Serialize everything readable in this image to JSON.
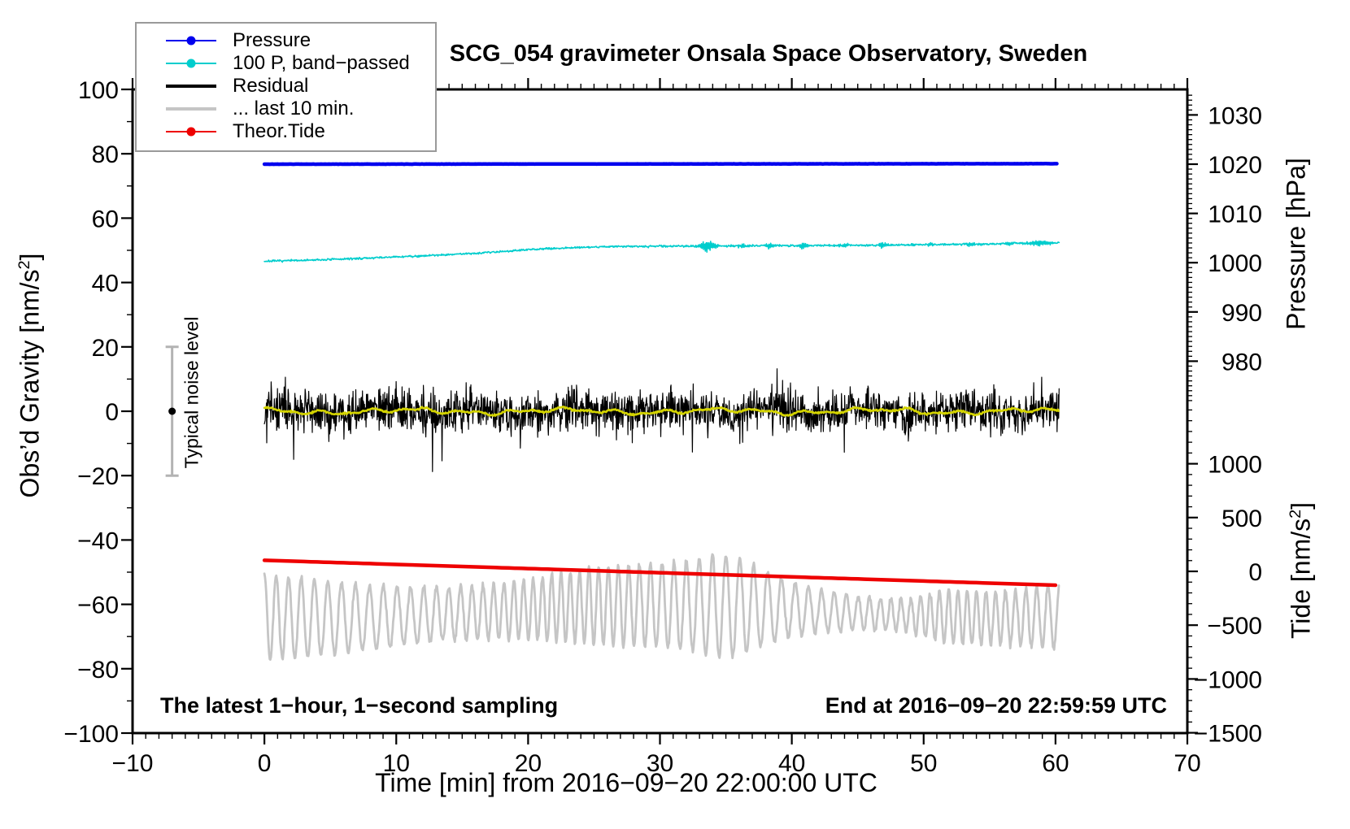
{
  "title": "SCG_054 gravimeter Onsala Space Observatory, Sweden",
  "legend": {
    "items": [
      {
        "label": "Pressure",
        "color": "#0000ee",
        "dot": true,
        "thickness": 2
      },
      {
        "label": "100 P, band−passed",
        "color": "#00cdcd",
        "dot": true,
        "thickness": 2
      },
      {
        "label": "Residual",
        "color": "#000000",
        "dot": false,
        "thickness": 4
      },
      {
        "label": "... last 10 min.",
        "color": "#c5c5c5",
        "dot": false,
        "thickness": 4
      },
      {
        "label": "Theor.Tide",
        "color": "#ee0000",
        "dot": true,
        "thickness": 2
      }
    ]
  },
  "chart_data": {
    "type": "line",
    "title": "SCG_054 gravimeter Onsala Space Observatory, Sweden",
    "xlabel": "Time [min] from 2016−09−20 22:00:00 UTC",
    "annotations": {
      "left": "The latest 1−hour, 1−second sampling",
      "right": "End at 2016−09−20 22:59:59 UTC"
    },
    "noise_marker": {
      "t": -7,
      "value": 0,
      "error": 20,
      "label": "Typical noise level",
      "color": "#b3b3b3",
      "dot_color": "#000000"
    },
    "axes": {
      "x": {
        "label": "Time [min] from 2016−09−20 22:00:00 UTC",
        "range": [
          -10,
          70
        ],
        "minor_step": 1,
        "major": [
          {
            "t": -10,
            "label": "−10"
          },
          {
            "t": 0,
            "label": "0"
          },
          {
            "t": 10,
            "label": "10"
          },
          {
            "t": 20,
            "label": "20"
          },
          {
            "t": 30,
            "label": "30"
          },
          {
            "t": 40,
            "label": "40"
          },
          {
            "t": 50,
            "label": "50"
          },
          {
            "t": 60,
            "label": "60"
          },
          {
            "t": 70,
            "label": "70"
          }
        ]
      },
      "gravity": {
        "label_pre": "Obs’d Gravity [nm/s",
        "label_sup": "2",
        "label_post": "]",
        "range": [
          -100,
          100
        ],
        "minor_step": 10,
        "major": [
          {
            "v": 100,
            "label": "100"
          },
          {
            "v": 80,
            "label": "80"
          },
          {
            "v": 60,
            "label": "60"
          },
          {
            "v": 40,
            "label": "40"
          },
          {
            "v": 20,
            "label": "20"
          },
          {
            "v": 0,
            "label": "0"
          },
          {
            "v": -20,
            "label": "−20"
          },
          {
            "v": -40,
            "label": "−40"
          },
          {
            "v": -60,
            "label": "−60"
          },
          {
            "v": -80,
            "label": "−80"
          },
          {
            "v": -100,
            "label": "−100"
          }
        ]
      },
      "pressure": {
        "label": "Pressure [hPa]",
        "units": "hPa",
        "minor_step": 1,
        "minor_range": [
          972,
          1034
        ],
        "major": [
          {
            "v": 1030,
            "label": "1030"
          },
          {
            "v": 1020,
            "label": "1020"
          },
          {
            "v": 1010,
            "label": "1010"
          },
          {
            "v": 1000,
            "label": "1000"
          },
          {
            "v": 990,
            "label": "990"
          },
          {
            "v": 980,
            "label": "980"
          }
        ]
      },
      "tide": {
        "label_pre": "Tide [nm/s",
        "label_sup": "2",
        "label_post": "]",
        "minor_step": 100,
        "minor_range": [
          -1500,
          1500
        ],
        "major": [
          {
            "v": 1000,
            "label": "1000"
          },
          {
            "v": 500,
            "label": "500"
          },
          {
            "v": 0,
            "label": "0"
          },
          {
            "v": -500,
            "label": "−500"
          },
          {
            "v": -1000,
            "label": "−1000"
          },
          {
            "v": -1500,
            "label": "−1500"
          }
        ]
      }
    },
    "series": [
      {
        "name": "... last 10 min.",
        "axis": "gravity",
        "color": "#c5c5c5",
        "width": 2.8,
        "kind": "carrier",
        "seed": 9,
        "span": [
          0,
          60.3
        ],
        "dt": 0.045,
        "center": -63,
        "center_waves": [
          [
            -1.7,
            0.125,
            1.0
          ],
          [
            1.0,
            0.04,
            0.3
          ]
        ],
        "period": 0.88,
        "period_wobble": [
          0.18,
          0.21,
          0
        ],
        "amp": 9.5,
        "amp_waves": [
          [
            3.0,
            0.19,
            2.0
          ],
          [
            1.8,
            0.077,
            0.6
          ]
        ],
        "amp_bumps": [
          [
            35.3,
            2.2,
            4.5
          ],
          [
            52.0,
            2.0,
            2.5
          ]
        ],
        "noise": 0.7
      },
      {
        "name": "Theor.Tide",
        "axis": "tide",
        "color": "#ee0000",
        "width": 4.5,
        "kind": "trend",
        "seed": 1,
        "span": [
          0,
          60.4
        ],
        "dt": 0.5,
        "anchors": [
          [
            0,
            103
          ],
          [
            60.4,
            -130
          ]
        ],
        "noise": 0
      },
      {
        "name": "Residual",
        "axis": "gravity",
        "color": "#000000",
        "width": 1.2,
        "kind": "spiky",
        "seed": 3,
        "span": [
          0,
          60.3
        ],
        "dt": 0.03,
        "base": 0,
        "sigma": 4.8,
        "spike_prob": 0.02,
        "spike_scale": 2.4,
        "clamp": 26,
        "slow_amp": 1.0,
        "slow_period": 7.3
      },
      {
        "name": "Residual smoothed",
        "axis": "gravity",
        "color": "#d4d400",
        "width": 2.6,
        "kind": "smooth",
        "seed": 5,
        "span": [
          0,
          60.3
        ],
        "dt": 0.06,
        "base": 0,
        "waves": [
          [
            0.45,
            1.7,
            0.5
          ],
          [
            0.55,
            0.53,
            2.1
          ],
          [
            0.35,
            3.1,
            1.0
          ]
        ],
        "noise": 0.22
      },
      {
        "name": "100 P, band−passed",
        "axis": "gravity",
        "color": "#00cdcd",
        "width": 1.6,
        "kind": "trend",
        "seed": 7,
        "span": [
          0,
          60.3
        ],
        "dt": 0.04,
        "anchors": [
          [
            0,
            46.6
          ],
          [
            4,
            47.0
          ],
          [
            8,
            47.6
          ],
          [
            12,
            48.3
          ],
          [
            16,
            49.1
          ],
          [
            20,
            50.2
          ],
          [
            23,
            50.8
          ],
          [
            26,
            51.15
          ],
          [
            30,
            51.3
          ],
          [
            34,
            51.35
          ],
          [
            38,
            51.45
          ],
          [
            42,
            51.5
          ],
          [
            46,
            51.6
          ],
          [
            50,
            51.75
          ],
          [
            54,
            51.9
          ],
          [
            57,
            52.2
          ],
          [
            60.3,
            52.3
          ]
        ],
        "noise": 0.22,
        "burst_freq": 55,
        "bursts": [
          [
            33.6,
            0.45,
            1.5
          ],
          [
            36.2,
            0.2,
            0.8
          ],
          [
            38.4,
            0.25,
            0.9
          ],
          [
            40.9,
            0.25,
            1.0
          ],
          [
            44.0,
            0.2,
            0.6
          ],
          [
            46.9,
            0.25,
            0.9
          ],
          [
            50.5,
            0.2,
            0.5
          ],
          [
            53.6,
            0.25,
            0.6
          ],
          [
            56.5,
            0.25,
            0.5
          ],
          [
            58.8,
            0.5,
            0.9
          ]
        ]
      },
      {
        "name": "Pressure",
        "axis": "pressure",
        "color": "#0000ee",
        "width": 4.5,
        "kind": "trend",
        "seed": 11,
        "span": [
          0,
          60.2
        ],
        "dt": 0.1,
        "anchors": [
          [
            0,
            1020.0
          ],
          [
            30,
            1020.05
          ],
          [
            60.2,
            1020.1
          ]
        ],
        "noise": 0.015
      }
    ]
  }
}
